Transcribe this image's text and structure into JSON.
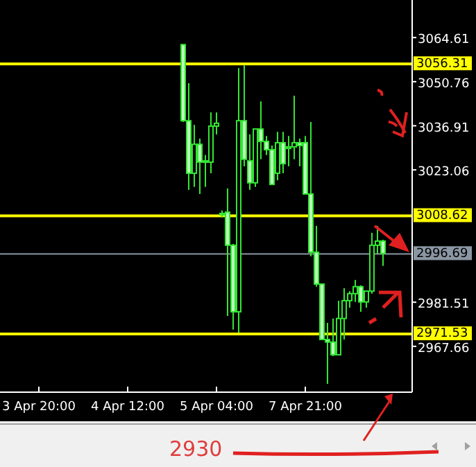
{
  "chart_data": {
    "type": "candlestick",
    "color": "#33e633",
    "categories": [
      "3 Apr 20:00",
      null,
      null,
      null,
      null,
      null,
      null,
      null,
      null,
      null,
      null,
      null,
      null,
      null,
      null,
      null,
      "4 Apr 12:00",
      null,
      null,
      null,
      null,
      null,
      null,
      null,
      null,
      null,
      null,
      null,
      null,
      null,
      null,
      null,
      "5 Apr 04:00",
      null,
      null,
      null,
      null,
      null,
      null,
      null,
      null,
      null,
      null,
      null,
      null,
      null,
      null,
      null,
      "7 Apr 21:00",
      null,
      null,
      null,
      null,
      null,
      null,
      null,
      null,
      null,
      null,
      null,
      null,
      null,
      null
    ],
    "ohlc": [
      null,
      null,
      null,
      null,
      null,
      null,
      null,
      null,
      null,
      null,
      null,
      null,
      null,
      null,
      null,
      null,
      null,
      null,
      null,
      null,
      null,
      null,
      null,
      null,
      null,
      null,
      [
        3062.4,
        3062.4,
        3038.1,
        3038.5
      ],
      [
        3038.5,
        3050.3,
        3016.8,
        3022.0
      ],
      [
        3022.0,
        3037.2,
        3017.7,
        3031.1
      ],
      [
        3031.1,
        3032.9,
        3015.5,
        3025.5
      ],
      [
        3025.9,
        3027.7,
        3017.7,
        3025.5
      ],
      [
        3025.5,
        3041.1,
        3022.0,
        3036.8
      ],
      [
        3036.8,
        3041.1,
        3034.2,
        3037.7
      ],
      [
        3009.0,
        3010.3,
        3008.1,
        3009.4
      ],
      [
        3009.8,
        3017.2,
        2977.2,
        2999.4
      ],
      [
        2999.4,
        2999.8,
        2972.9,
        2978.5
      ],
      [
        2978.5,
        3055.0,
        2972.0,
        3038.5
      ],
      [
        3038.5,
        3055.9,
        3024.2,
        3026.4
      ],
      [
        3025.9,
        3034.2,
        3016.8,
        3019.0
      ],
      [
        3019.0,
        3035.9,
        3017.7,
        3035.9
      ],
      [
        3035.9,
        3044.6,
        3026.4,
        3032.0
      ],
      [
        3032.0,
        3033.7,
        3027.7,
        3029.4
      ],
      [
        3029.4,
        3030.7,
        3018.5,
        3018.5
      ],
      [
        3022.0,
        3035.0,
        3019.8,
        3031.6
      ],
      [
        3031.6,
        3035.0,
        3022.0,
        3025.0
      ],
      [
        3029.8,
        3033.7,
        3024.2,
        3030.3
      ],
      [
        3030.3,
        3046.3,
        3026.4,
        3031.6
      ],
      [
        3031.6,
        3032.9,
        3024.2,
        3030.7
      ],
      [
        3031.6,
        3033.7,
        3015.5,
        3015.5
      ],
      [
        3015.5,
        3038.1,
        2995.9,
        2997.2
      ],
      [
        2997.2,
        3005.5,
        2986.4,
        2987.2
      ],
      [
        2987.2,
        2987.2,
        2969.8,
        2969.8
      ],
      [
        2969.8,
        2975.0,
        2955.9,
        2969.0
      ],
      [
        2969.0,
        2976.4,
        2964.6,
        2965.0
      ],
      [
        2965.0,
        2982.0,
        2965.0,
        2976.4
      ],
      [
        2976.4,
        2985.9,
        2969.8,
        2982.0
      ],
      [
        2982.0,
        2985.0,
        2979.8,
        2984.2
      ],
      [
        2984.2,
        2988.5,
        2981.6,
        2986.4
      ],
      [
        2986.4,
        2986.8,
        2978.5,
        2981.6
      ],
      [
        2981.6,
        2985.0,
        2979.8,
        2985.0
      ],
      [
        2985.0,
        3003.3,
        2984.2,
        2999.4
      ],
      [
        2999.4,
        3005.5,
        2996.8,
        3000.7
      ],
      [
        3000.7,
        3001.1,
        2992.9,
        2996.8
      ]
    ],
    "ylim": [
      2953.7,
      3076.4
    ],
    "yticks": [
      3064.61,
      3050.76,
      3036.91,
      3023.06,
      2981.51,
      2967.66
    ],
    "ref_lines": [
      {
        "axis": "y",
        "value": 3056.31,
        "label": "3056.31",
        "color": "#ffff00"
      },
      {
        "axis": "y",
        "value": 3008.62,
        "label": "3008.62",
        "color": "#ffff00"
      },
      {
        "axis": "y",
        "value": 2996.69,
        "label": "2996.69",
        "color": "#8a96a3"
      },
      {
        "axis": "y",
        "value": 2971.53,
        "label": "2971.53",
        "color": "#ffff00"
      }
    ],
    "annotations": [
      "2930"
    ]
  }
}
